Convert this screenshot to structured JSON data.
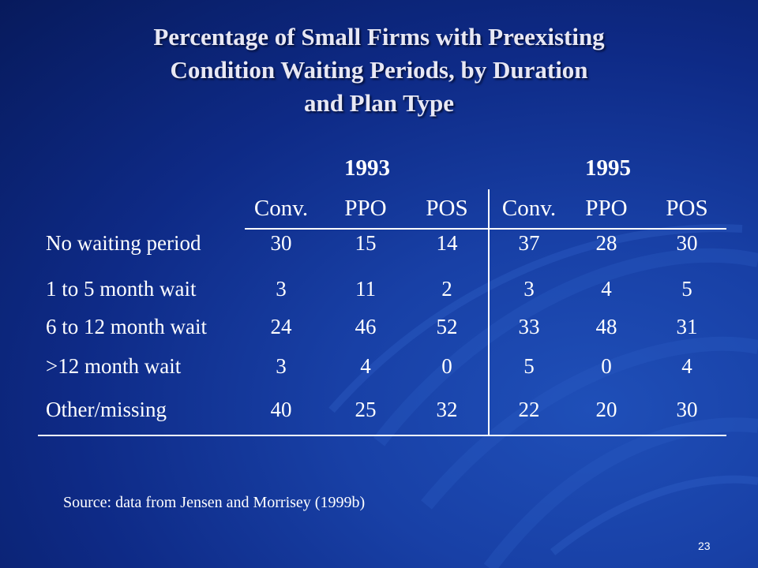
{
  "title_lines": [
    "Percentage of Small Firms with Preexisting",
    "Condition Waiting Periods, by Duration",
    "and Plan Type"
  ],
  "chart_data": {
    "type": "table",
    "title": "Percentage of Small Firms with Preexisting Condition Waiting Periods, by Duration and Plan Type",
    "year_groups": [
      "1993",
      "1995"
    ],
    "columns": [
      "Conv.",
      "PPO",
      "POS",
      "Conv.",
      "PPO",
      "POS"
    ],
    "rows": [
      {
        "label": "No waiting period",
        "values": [
          "30",
          "15",
          "14",
          "37",
          "28",
          "30"
        ]
      },
      {
        "label": "1 to 5 month wait",
        "values": [
          "3",
          "11",
          "2",
          "3",
          "4",
          "5"
        ]
      },
      {
        "label": "6 to 12 month wait",
        "values": [
          "24",
          "46",
          "52",
          "33",
          "48",
          "31"
        ]
      },
      {
        "label": ">12 month wait",
        "values": [
          "3",
          "4",
          "0",
          "5",
          "0",
          "4"
        ]
      },
      {
        "label": "Other/missing",
        "values": [
          "40",
          "25",
          "32",
          "22",
          "20",
          "30"
        ]
      }
    ]
  },
  "source": "Source: data from Jensen and Morrisey (1999b)",
  "page_number": "23",
  "colors": {
    "background": "#0e2a86",
    "text": "#ffffff"
  }
}
